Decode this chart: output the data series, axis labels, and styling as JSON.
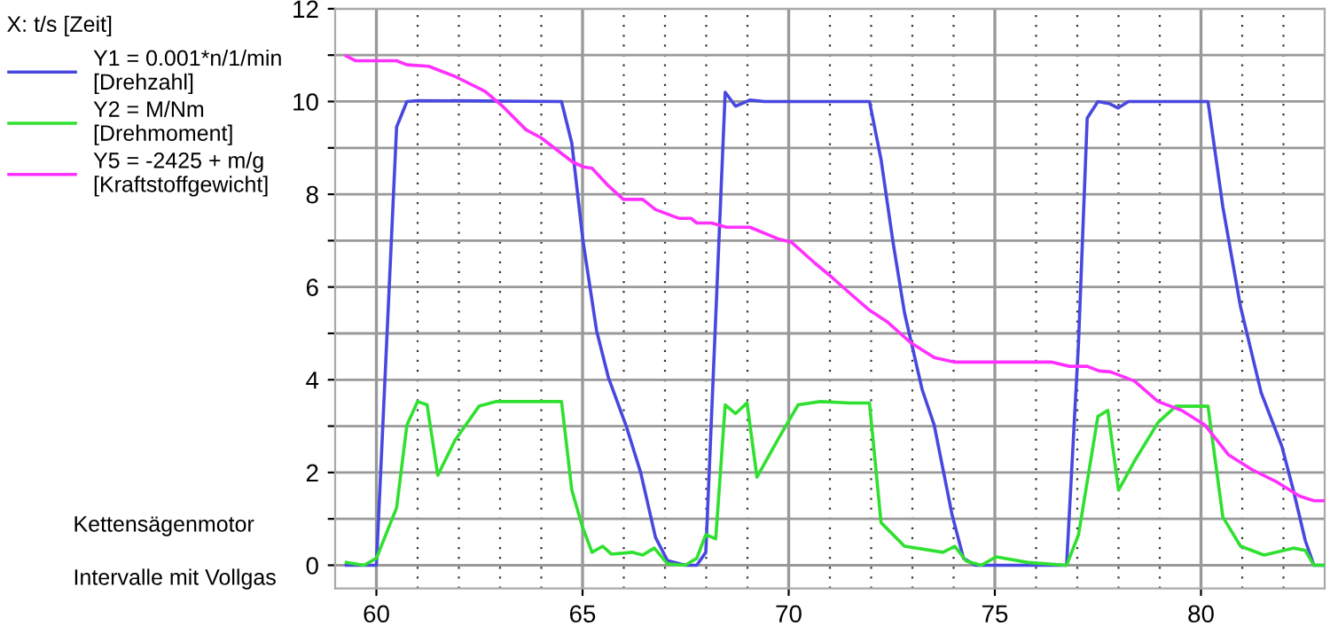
{
  "chart_data": {
    "type": "line",
    "xlim": [
      59,
      83
    ],
    "ylim": [
      -0.5,
      12
    ],
    "xticks": [
      60,
      {
        "value": 61,
        "label": null
      },
      {
        "value": 62,
        "label": null
      },
      {
        "value": 63,
        "label": null
      },
      {
        "value": 64,
        "label": null
      },
      65,
      {
        "value": 66,
        "label": null
      },
      {
        "value": 67,
        "label": null
      },
      {
        "value": 68,
        "label": null
      },
      {
        "value": 69,
        "label": null
      },
      70,
      {
        "value": 71,
        "label": null
      },
      {
        "value": 72,
        "label": null
      },
      {
        "value": 73,
        "label": null
      },
      {
        "value": 74,
        "label": null
      },
      75,
      {
        "value": 76,
        "label": null
      },
      {
        "value": 77,
        "label": null
      },
      {
        "value": 78,
        "label": null
      },
      {
        "value": 79,
        "label": null
      },
      80,
      {
        "value": 81,
        "label": null
      },
      {
        "value": 82,
        "label": null
      }
    ],
    "yticks": [
      0,
      {
        "value": 1,
        "label": null
      },
      2,
      {
        "value": 3,
        "label": null
      },
      4,
      {
        "value": 5,
        "label": null
      },
      6,
      {
        "value": 7,
        "label": null
      },
      8,
      {
        "value": 9,
        "label": null
      },
      10,
      {
        "value": 11,
        "label": null
      },
      12
    ],
    "grid": true,
    "legend": "left",
    "marker": "none",
    "line_style": "solid",
    "annotations": [
      "X: t/s [Zeit]",
      "Kettensägenmotor",
      "Intervalle mit Vollgas"
    ],
    "series": [
      {
        "name": "Y1 = 0.001*n/1/min\n[Drehzahl]",
        "color": "#4848e0",
        "x": [
          59.27,
          60,
          60.49,
          60.74,
          61,
          64.49,
          64.74,
          65.01,
          65.34,
          65.63,
          66.06,
          66.41,
          66.77,
          67.06,
          67.49,
          67.77,
          67.99,
          68.46,
          68.71,
          69.06,
          69.41,
          71.96,
          72.24,
          72.53,
          72.81,
          73.24,
          73.53,
          73.96,
          74.24,
          74.53,
          76.74,
          77.03,
          77.24,
          77.5,
          77.79,
          77.99,
          78.24,
          80.17,
          80.53,
          80.96,
          81.46,
          81.96,
          82.24,
          82.53,
          82.74,
          82.99
        ],
        "values": [
          0,
          0,
          9.45,
          10,
          10.02,
          10,
          9.1,
          7.0,
          5.06,
          4.04,
          3.0,
          2.0,
          0.6,
          0.1,
          0,
          0,
          0.28,
          10.2,
          9.9,
          10.03,
          10,
          10,
          8.75,
          6.97,
          5.44,
          3.78,
          3.02,
          1.1,
          0.15,
          0,
          0,
          4.8,
          9.64,
          10,
          9.95,
          9.86,
          10,
          10,
          7.73,
          5.57,
          3.72,
          2.57,
          1.62,
          0.53,
          0,
          0
        ]
      },
      {
        "name": "Y2 = M/Nm\n[Drehmoment]",
        "color": "#30e030",
        "x": [
          59.27,
          59.7,
          60,
          60.49,
          60.74,
          61,
          61.23,
          61.49,
          61.91,
          62.49,
          62.91,
          64.49,
          64.74,
          64.99,
          65.23,
          65.49,
          65.7,
          66.2,
          66.46,
          66.74,
          67.06,
          67.49,
          67.77,
          67.99,
          68.23,
          68.46,
          68.71,
          68.99,
          69.23,
          69.77,
          70.23,
          70.77,
          71.49,
          71.96,
          72.24,
          72.81,
          73.74,
          74.03,
          74.31,
          74.67,
          75.03,
          75.81,
          76.74,
          77.03,
          77.5,
          77.74,
          78.0,
          78.39,
          78.96,
          79.39,
          80.17,
          80.53,
          80.96,
          81.53,
          82.24,
          82.53,
          82.74,
          82.99
        ],
        "values": [
          0.06,
          0,
          0.15,
          1.24,
          3.02,
          3.53,
          3.46,
          1.94,
          2.7,
          3.43,
          3.53,
          3.53,
          1.62,
          0.85,
          0.28,
          0.41,
          0.24,
          0.28,
          0.22,
          0.37,
          0.03,
          0,
          0.15,
          0.66,
          0.57,
          3.46,
          3.27,
          3.5,
          1.9,
          2.76,
          3.46,
          3.53,
          3.5,
          3.5,
          0.92,
          0.41,
          0.28,
          0.41,
          0.09,
          0,
          0.18,
          0.06,
          0,
          0.66,
          3.21,
          3.34,
          1.62,
          2.25,
          3.08,
          3.43,
          3.43,
          1.04,
          0.41,
          0.22,
          0.37,
          0.32,
          0,
          0
        ]
      },
      {
        "name": "Y5 = -2425 + m/g\n[Kraftstoffgewicht]",
        "color": "#ff30ff",
        "x": [
          59.27,
          59.49,
          60.49,
          60.74,
          61.27,
          61.91,
          62.63,
          63.06,
          63.63,
          63.99,
          64.77,
          65.03,
          65.23,
          65.63,
          65.99,
          66.46,
          66.77,
          67.34,
          67.63,
          67.77,
          68.13,
          68.49,
          69.06,
          69.77,
          70.06,
          70.63,
          71.06,
          71.49,
          71.96,
          72.39,
          72.96,
          73.53,
          74.03,
          76.39,
          76.81,
          77.24,
          77.53,
          77.81,
          78.39,
          78.96,
          79.53,
          80.1,
          80.67,
          81.24,
          81.81,
          82.39,
          82.74,
          82.99
        ],
        "values": [
          10.98,
          10.88,
          10.88,
          10.79,
          10.76,
          10.54,
          10.22,
          9.9,
          9.39,
          9.22,
          8.69,
          8.59,
          8.56,
          8.18,
          7.89,
          7.89,
          7.67,
          7.48,
          7.48,
          7.38,
          7.38,
          7.29,
          7.29,
          7.03,
          6.97,
          6.52,
          6.2,
          5.86,
          5.5,
          5.25,
          4.8,
          4.48,
          4.38,
          4.38,
          4.29,
          4.29,
          4.19,
          4.17,
          3.97,
          3.53,
          3.34,
          3.02,
          2.38,
          2.06,
          1.81,
          1.49,
          1.39,
          1.39
        ]
      }
    ]
  }
}
